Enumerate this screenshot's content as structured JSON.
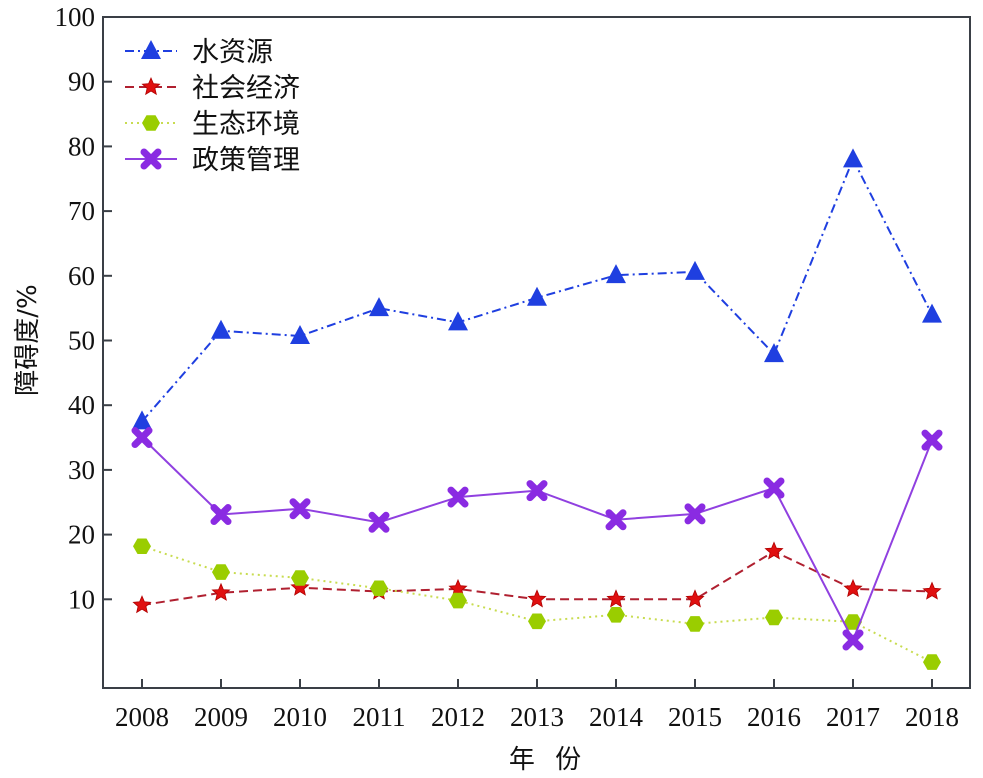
{
  "chart_data": {
    "type": "line",
    "title": "",
    "xlabel": "年 份",
    "ylabel": "障碍度/%",
    "categories": [
      "2008",
      "2009",
      "2010",
      "2011",
      "2012",
      "2013",
      "2014",
      "2015",
      "2016",
      "2017",
      "2018"
    ],
    "ylim": [
      0,
      100
    ],
    "yticks": [
      10,
      20,
      30,
      40,
      50,
      60,
      70,
      80,
      90,
      100
    ],
    "grid": false,
    "legend_position": "upper left",
    "series": [
      {
        "name": "水资源",
        "color": "#1f3fe0",
        "line_style": "dashdot",
        "marker": "triangle",
        "values": [
          37.5,
          51.5,
          50.7,
          55.0,
          52.8,
          56.6,
          60.1,
          60.6,
          47.9,
          78.0,
          54.0
        ]
      },
      {
        "name": "社会经济",
        "color": "#e01010",
        "line_color": "#b02030",
        "line_style": "dashed",
        "marker": "star",
        "values": [
          9.1,
          11.0,
          11.8,
          11.2,
          11.6,
          10.0,
          10.0,
          10.0,
          17.4,
          11.6,
          11.2
        ]
      },
      {
        "name": "生态环境",
        "color": "#9acd00",
        "line_color": "#c8dc50",
        "line_style": "dotted",
        "marker": "hexagon",
        "values": [
          18.2,
          14.2,
          13.3,
          11.7,
          9.8,
          6.6,
          7.6,
          6.2,
          7.2,
          6.5,
          0.3
        ]
      },
      {
        "name": "政策管理",
        "color": "#8a2be2",
        "line_color": "#9040e0",
        "line_style": "solid",
        "marker": "cross",
        "values": [
          35.0,
          23.1,
          24.0,
          21.9,
          25.8,
          26.8,
          22.3,
          23.2,
          27.2,
          3.7,
          34.6
        ]
      }
    ]
  }
}
